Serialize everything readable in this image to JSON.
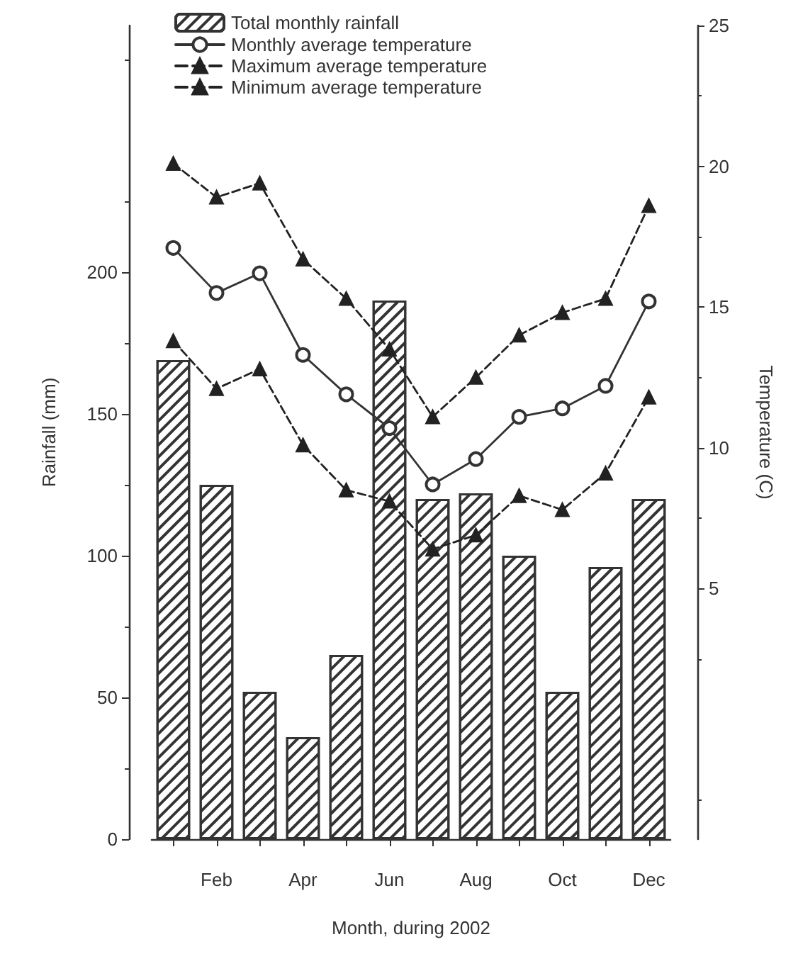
{
  "chart_data": {
    "type": "bar",
    "xlabel": "Month, during 2002",
    "ylabel": "Rainfall (mm)",
    "y2label": "Temperature (C)",
    "categories": [
      null,
      "Feb",
      null,
      "Apr",
      null,
      "Jun",
      null,
      "Aug",
      null,
      "Oct",
      null,
      "Dec"
    ],
    "series": [
      {
        "name": "Total monthly rainfall",
        "color": "#333333",
        "values": [
          169,
          125,
          52,
          36,
          65,
          190,
          120,
          122,
          100,
          52,
          96,
          120
        ]
      },
      {
        "name": "Monthly average temperature",
        "type": "line",
        "axis": "y2",
        "color": "#333333",
        "marker": "circle",
        "line_style": "solid",
        "values": [
          17.1,
          15.5,
          16.2,
          13.3,
          11.9,
          10.7,
          8.7,
          9.6,
          11.1,
          11.4,
          12.2,
          15.2
        ]
      },
      {
        "name": "Maximum average temperature",
        "type": "line",
        "axis": "y2",
        "color": "#222222",
        "marker": "triangle",
        "line_style": "dashed",
        "values": [
          20.1,
          18.9,
          19.4,
          16.7,
          15.3,
          13.5,
          11.1,
          12.5,
          14.0,
          14.8,
          15.3,
          18.6
        ]
      },
      {
        "name": "Minimum average temperature",
        "type": "line",
        "axis": "y2",
        "color": "#222222",
        "marker": "triangle",
        "line_style": "dashed",
        "values": [
          13.8,
          12.1,
          12.8,
          10.1,
          8.5,
          8.1,
          6.4,
          6.9,
          8.3,
          7.8,
          9.1,
          11.8
        ]
      }
    ],
    "ylim": [
      0,
      287
    ],
    "yticks": [
      0,
      50,
      100,
      150,
      200
    ],
    "y2lim": [
      -3.9,
      25
    ],
    "y2ticks": [
      5,
      10,
      15,
      20,
      25
    ],
    "legend": "top left",
    "grid": false
  }
}
